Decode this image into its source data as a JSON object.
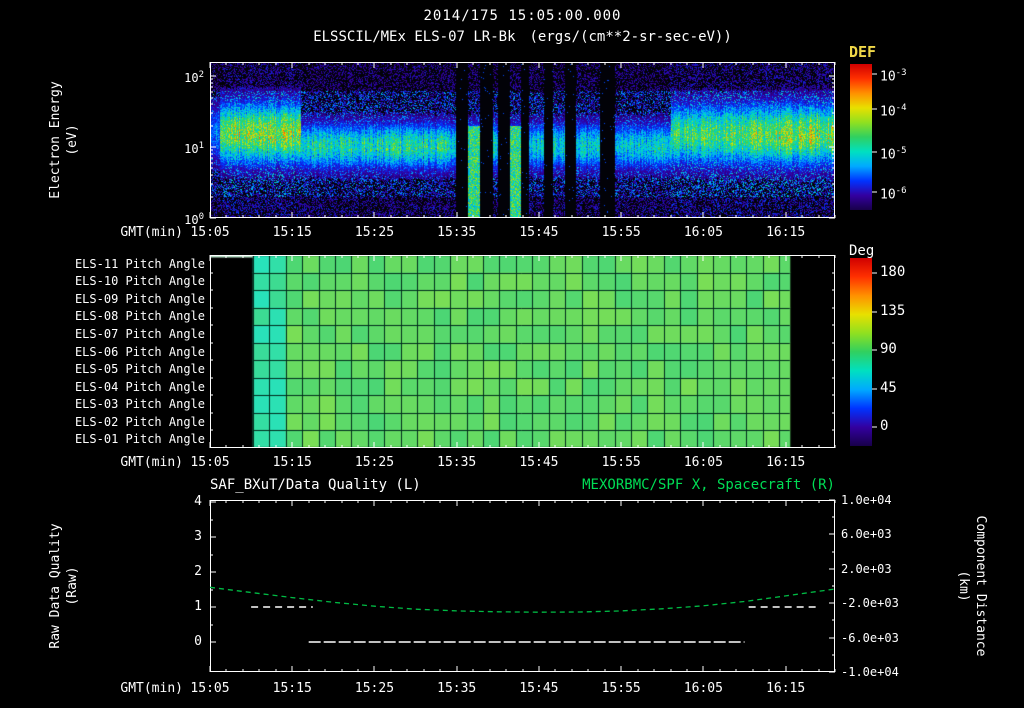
{
  "header": {
    "title": "2014/175 15:05:00.000"
  },
  "colors": {
    "background": "#000000",
    "text": "#ffffff",
    "accent_green": "#00dd55",
    "def_label": "#f0d848",
    "quality_line": "#ffffff",
    "distance_line": "#00bb44",
    "colormap_stops": [
      "#18004a",
      "#3300a0",
      "#0033ff",
      "#00aaff",
      "#00e0c0",
      "#30d060",
      "#90e020",
      "#e8e000",
      "#ff9000",
      "#ff3000",
      "#d00000"
    ]
  },
  "time_axis": {
    "label": "GMT(min)",
    "tick_labels": [
      "15:05",
      "15:15",
      "15:25",
      "15:35",
      "15:45",
      "15:55",
      "16:05",
      "16:15"
    ],
    "tick_every_min": 10,
    "minutes_span": 76
  },
  "spectrogram": {
    "title": "ELSSCIL/MEx ELS-07 LR-Bk",
    "units": "(ergs/(cm**2-sr-sec-eV))",
    "ylabel": [
      "Electron Energy",
      "(eV)"
    ],
    "ytick_exponents": [
      2,
      1,
      0
    ],
    "colorbar": {
      "label": "DEF",
      "tick_exponents": [
        -3,
        -4,
        -5,
        -6
      ]
    }
  },
  "pitch_panel": {
    "row_labels": [
      "ELS-11 Pitch Angle",
      "ELS-10 Pitch Angle",
      "ELS-09 Pitch Angle",
      "ELS-08 Pitch Angle",
      "ELS-07 Pitch Angle",
      "ELS-06 Pitch Angle",
      "ELS-05 Pitch Angle",
      "ELS-04 Pitch Angle",
      "ELS-03 Pitch Angle",
      "ELS-02 Pitch Angle",
      "ELS-01 Pitch Angle"
    ],
    "colorbar": {
      "label": "Deg",
      "tick_labels": [
        "180",
        "135",
        "90",
        "45",
        "0"
      ]
    }
  },
  "bottom_panel": {
    "title_left": "SAF_BXuT/Data Quality (L)",
    "title_right": "MEXORBMC/SPF X, Spacecraft (R)",
    "left_axis": {
      "label": [
        "Raw Data Quality",
        "(Raw)"
      ],
      "tick_labels": [
        "4",
        "3",
        "2",
        "1",
        "0"
      ],
      "min": 0,
      "max": 4
    },
    "right_axis": {
      "label": [
        "Component Distance",
        "(km)"
      ],
      "tick_labels": [
        "1.0e+04",
        "6.0e+03",
        "2.0e+03",
        "-2.0e+03",
        "-6.0e+03",
        "-1.0e+04"
      ],
      "min": -10000,
      "max": 10000
    }
  },
  "chart_data": [
    {
      "id": "electron-energy-spectrogram",
      "type": "heatmap",
      "title": "ELSSCIL/MEx ELS-07 LR-Bk",
      "units": "ergs/(cm**2-sr-sec-eV)",
      "xlabel": "GMT(min)",
      "x_ticks": [
        "15:05",
        "15:15",
        "15:25",
        "15:35",
        "15:45",
        "15:55",
        "16:05",
        "16:15"
      ],
      "ylabel": "Electron Energy (eV)",
      "y_scale": "log",
      "y_range_eV": [
        1,
        158
      ],
      "value_scale": "log",
      "value_range": [
        1e-06,
        0.001
      ],
      "legend_position": "right-colorbar",
      "features": {
        "main_band_eV": [
          6,
          40
        ],
        "bright_intervals_min": [
          [
            1.5,
            11
          ],
          [
            56,
            76
          ]
        ],
        "moderate_interval_min": [
          [
            11,
            29
          ]
        ],
        "patchy_interval_min": [
          [
            29,
            54
          ]
        ],
        "data_gap_stripes_min": [
          [
            29.8,
            31.3
          ],
          [
            32.8,
            34.3
          ],
          [
            34.9,
            36.4
          ],
          [
            37.7,
            38.7
          ],
          [
            40.6,
            41.7
          ],
          [
            43.1,
            44.4
          ],
          [
            47.4,
            49.2
          ]
        ],
        "bright_columns_min": [
          [
            31.3,
            32.8
          ],
          [
            36.4,
            37.7
          ]
        ],
        "peak_flux_approx": 0.0001,
        "background_flux_approx": 1e-06
      }
    },
    {
      "id": "pitch-angle-panels",
      "type": "heatmap",
      "rows": [
        "ELS-11 Pitch Angle",
        "ELS-10 Pitch Angle",
        "ELS-09 Pitch Angle",
        "ELS-08 Pitch Angle",
        "ELS-07 Pitch Angle",
        "ELS-06 Pitch Angle",
        "ELS-05 Pitch Angle",
        "ELS-04 Pitch Angle",
        "ELS-03 Pitch Angle",
        "ELS-02 Pitch Angle",
        "ELS-01 Pitch Angle"
      ],
      "xlabel": "GMT(min)",
      "x_ticks": [
        "15:05",
        "15:15",
        "15:25",
        "15:35",
        "15:45",
        "15:55",
        "16:05",
        "16:15"
      ],
      "value_units": "Deg",
      "value_range": [
        0,
        180
      ],
      "coverage_min": [
        5.2,
        70.5
      ],
      "uniform_value_deg": 95,
      "left_edge_value_deg": 80,
      "cell_width_min": 2,
      "top_strip_min": [
        0,
        5.2
      ]
    },
    {
      "id": "quality-and-distance",
      "type": "line",
      "xlabel": "GMT(min)",
      "x_ticks": [
        "15:05",
        "15:15",
        "15:25",
        "15:35",
        "15:45",
        "15:55",
        "16:05",
        "16:15"
      ],
      "left_axis": {
        "label": "Raw Data Quality (Raw)",
        "range": [
          0,
          4
        ]
      },
      "right_axis": {
        "label": "Component Distance (km)",
        "range": [
          -10000,
          10000
        ]
      },
      "series": [
        {
          "name": "SAF_BXuT/Data Quality (L)",
          "axis": "left",
          "color": "#ffffff",
          "style": "dashed",
          "segments": [
            {
              "value": 1,
              "from_min": 5,
              "to_min": 12.5
            },
            {
              "value": 0,
              "from_min": 12,
              "to_min": 65
            },
            {
              "value": 1,
              "from_min": 65.5,
              "to_min": 74
            }
          ]
        },
        {
          "name": "MEXORBMC/SPF X, Spacecraft (R)",
          "axis": "right",
          "color": "#00bb44",
          "style": "dashed",
          "points": [
            [
              0,
              -150
            ],
            [
              5,
              -750
            ],
            [
              10,
              -1350
            ],
            [
              15,
              -1900
            ],
            [
              20,
              -2350
            ],
            [
              25,
              -2700
            ],
            [
              30,
              -2900
            ],
            [
              35,
              -3000
            ],
            [
              40,
              -3050
            ],
            [
              45,
              -3020
            ],
            [
              50,
              -2900
            ],
            [
              55,
              -2650
            ],
            [
              60,
              -2300
            ],
            [
              65,
              -1800
            ],
            [
              70,
              -1150
            ],
            [
              76,
              -350
            ]
          ]
        }
      ]
    }
  ]
}
